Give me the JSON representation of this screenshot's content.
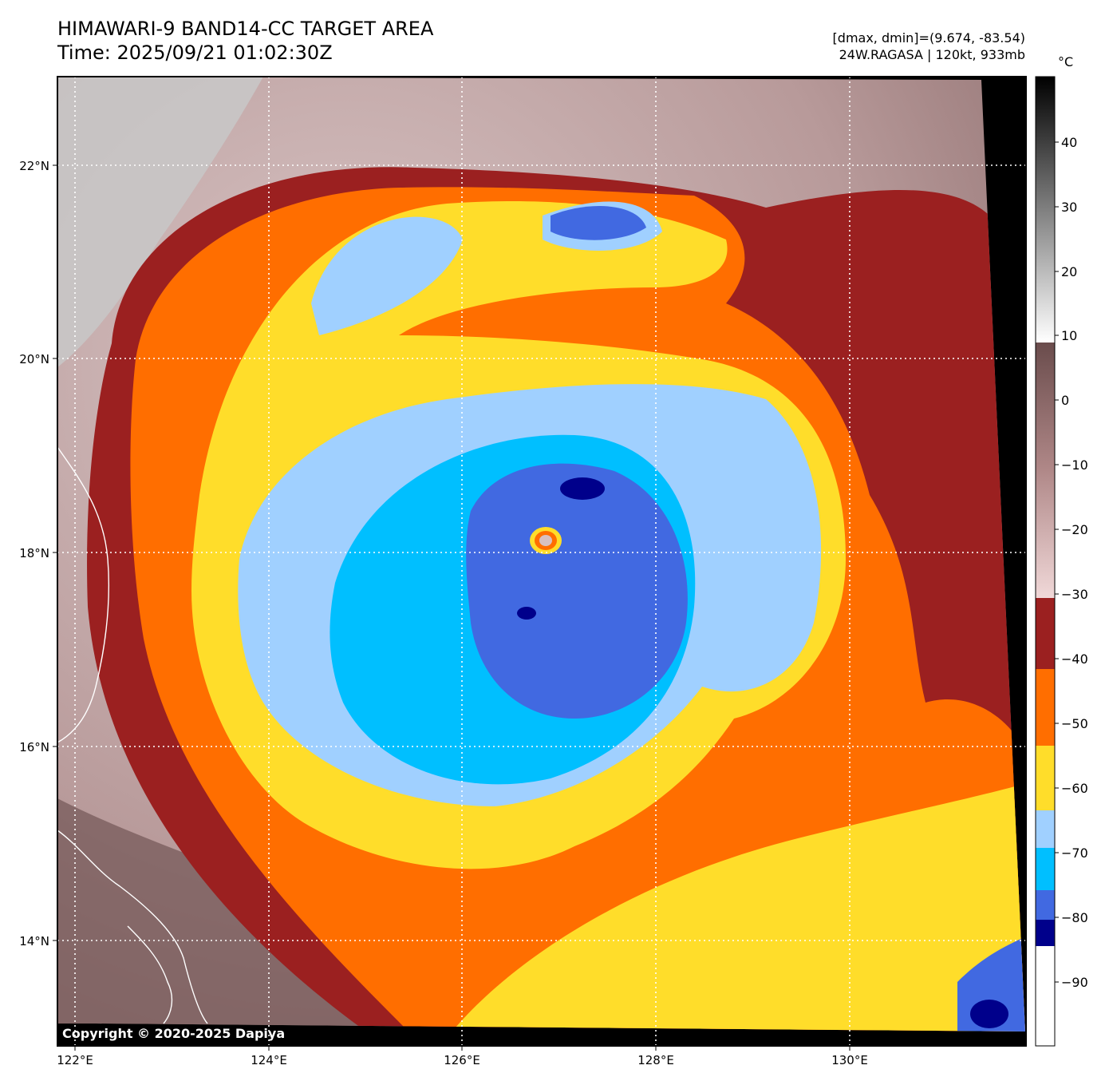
{
  "header": {
    "title": "HIMAWARI-9 BAND14-CC TARGET AREA",
    "time": "Time: 2025/09/21 01:02:30Z",
    "dminmax": "[dmax, dmin]=(9.674, -83.54)",
    "storm": "24W.RAGASA | 120kt, 933mb"
  },
  "map": {
    "lon_ticks": [
      "122°E",
      "124°E",
      "126°E",
      "128°E",
      "130°E"
    ],
    "lat_ticks": [
      "22°N",
      "20°N",
      "18°N",
      "16°N",
      "14°N"
    ],
    "copyright": "Copyright © 2020-2025 Dapiya",
    "storm_center": {
      "lon": 126.85,
      "lat": 18.1
    }
  },
  "colorbar": {
    "unit": "°C",
    "ticks": [
      "40",
      "30",
      "20",
      "10",
      "0",
      "−10",
      "−20",
      "−30",
      "−40",
      "−50",
      "−60",
      "−70",
      "−80",
      "−90"
    ],
    "bands": [
      {
        "from": -100,
        "to": -84,
        "color": "#ffffff"
      },
      {
        "from": -84,
        "to": -80,
        "color": "#00008b"
      },
      {
        "from": -80,
        "to": -76,
        "color": "#4169e1"
      },
      {
        "from": -76,
        "to": -70,
        "color": "#00bfff"
      },
      {
        "from": -70,
        "to": -64,
        "color": "#a0d0ff"
      },
      {
        "from": -64,
        "to": -54,
        "color": "#ffdd2a"
      },
      {
        "from": -54,
        "to": -46,
        "color": "#ff6e00"
      },
      {
        "from": -46,
        "to": -35,
        "color": "#9b2020"
      }
    ]
  }
}
